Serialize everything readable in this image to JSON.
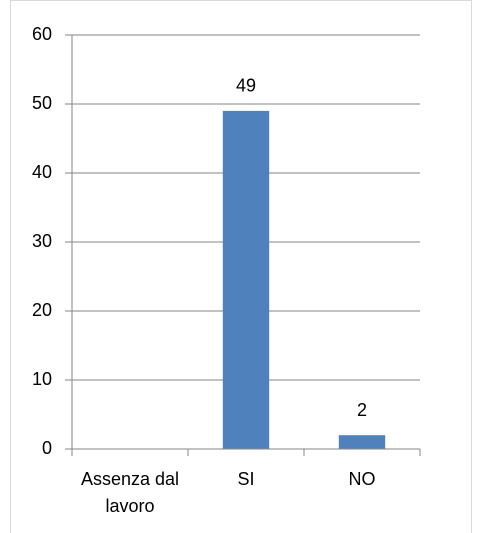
{
  "chart_data": {
    "type": "bar",
    "categories": [
      "Assenza dal lavoro",
      "SI",
      "NO"
    ],
    "values": [
      null,
      49,
      2
    ],
    "color": "#4f81bd",
    "ylim": [
      0,
      60
    ],
    "yticks": [
      0,
      10,
      20,
      30,
      40,
      50,
      60
    ],
    "grid": true
  }
}
